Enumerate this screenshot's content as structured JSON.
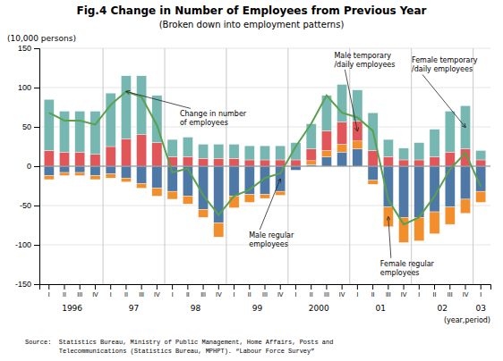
{
  "chart_data": {
    "type": "bar",
    "title": "Fig.4 Change in Number of Employees from Previous Year",
    "subtitle": "(Broken down into employment patterns)",
    "y_label": "(10,000 persons)",
    "x_label": "(year,period)",
    "source": [
      "Source:  Statistics Bureau, Ministry of Public Management, Home Affairs, Posts and",
      "         Telecommunications (Statistics Bureau, MPHPT). “Labour Force Survey”"
    ],
    "categories": [
      "I",
      "II",
      "III",
      "IV",
      "I",
      "II",
      "III",
      "IV",
      "I",
      "II",
      "III",
      "IV",
      "I",
      "II",
      "III",
      "IV",
      "I",
      "II",
      "III",
      "IV",
      "I",
      "II",
      "III",
      "IV",
      "I",
      "II",
      "III",
      "IV",
      "I"
    ],
    "x_groups": [
      {
        "label": "1996",
        "size": 4
      },
      {
        "label": "97",
        "size": 4
      },
      {
        "label": "98",
        "size": 4
      },
      {
        "label": "99",
        "size": 4
      },
      {
        "label": "2000",
        "size": 4
      },
      {
        "label": "01",
        "size": 4
      },
      {
        "label": "02",
        "size": 4
      },
      {
        "label": "03",
        "size": 1
      }
    ],
    "stacked": true,
    "grid": true,
    "ylim": [
      -150,
      150
    ],
    "yticks": [
      -150,
      -100,
      -50,
      0,
      50,
      100,
      150
    ],
    "series": [
      {
        "name": "Male regular\nemployees",
        "type": "bar",
        "values": [
          -12,
          -8,
          -8,
          -12,
          -10,
          -15,
          -22,
          -28,
          -32,
          -38,
          -55,
          -72,
          -38,
          -36,
          -36,
          -32,
          -5,
          2,
          12,
          18,
          22,
          -18,
          -52,
          -65,
          -65,
          -58,
          -52,
          -42,
          -32
        ]
      },
      {
        "name": "Female regular\nemployees",
        "type": "bar",
        "values": [
          -5,
          -4,
          -4,
          -5,
          -5,
          -5,
          -6,
          -10,
          -10,
          -10,
          -10,
          -18,
          -15,
          -10,
          -5,
          -5,
          0,
          5,
          8,
          10,
          10,
          -5,
          -25,
          -32,
          -30,
          -28,
          -22,
          -18,
          -14
        ]
      },
      {
        "name": "Male temporary\n/daily employees",
        "type": "bar",
        "values": [
          20,
          18,
          18,
          15,
          25,
          35,
          40,
          30,
          12,
          12,
          10,
          10,
          10,
          8,
          8,
          8,
          8,
          15,
          25,
          28,
          25,
          20,
          12,
          8,
          8,
          12,
          18,
          22,
          8
        ]
      },
      {
        "name": "Female temporary\n/daily employees",
        "type": "bar",
        "values": [
          65,
          52,
          52,
          55,
          68,
          80,
          75,
          60,
          22,
          25,
          18,
          18,
          18,
          18,
          18,
          18,
          22,
          32,
          45,
          48,
          40,
          48,
          22,
          15,
          22,
          35,
          52,
          55,
          12
        ]
      },
      {
        "name": "Change in number\nof employees",
        "type": "line",
        "values": [
          68,
          58,
          58,
          53,
          78,
          95,
          88,
          52,
          -8,
          -3,
          -37,
          -62,
          -38,
          -30,
          -15,
          -9,
          25,
          54,
          90,
          68,
          62,
          45,
          -43,
          -74,
          -65,
          -38,
          -4,
          17,
          -26
        ]
      }
    ],
    "annotations": [
      {
        "series": 4,
        "index": 5
      },
      {
        "series": 0,
        "index": 15
      },
      {
        "series": 1,
        "index": 22
      },
      {
        "series": 2,
        "index": 20
      },
      {
        "series": 3,
        "index": 27
      }
    ]
  }
}
